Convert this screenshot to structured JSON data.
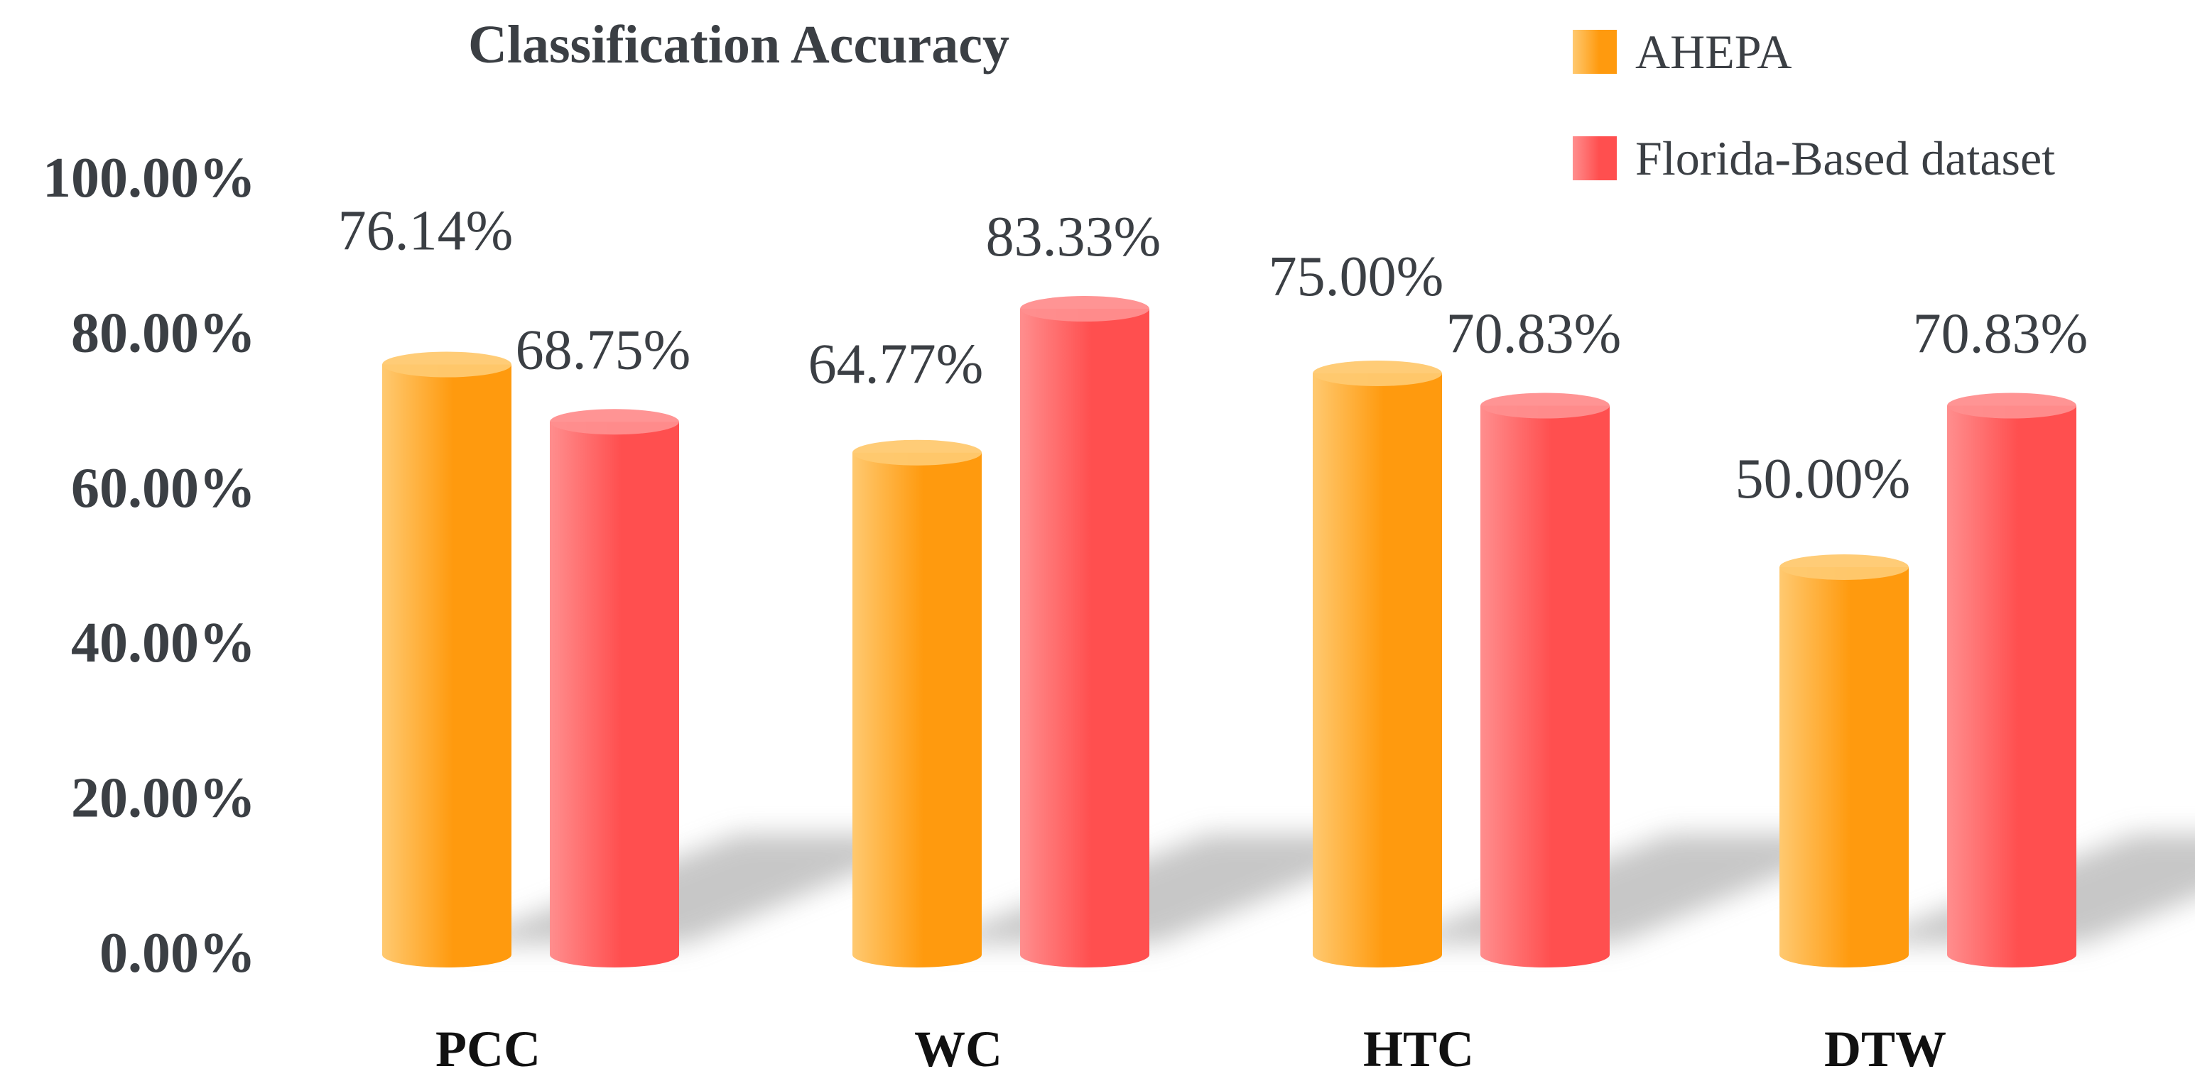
{
  "chart_data": {
    "type": "bar",
    "title": "Classification Accuracy",
    "categories": [
      "PCC",
      "WC",
      "HTC",
      "DTW"
    ],
    "series": [
      {
        "name": "AHEPA",
        "values": [
          76.14,
          64.77,
          75.0,
          50.0
        ],
        "labels": [
          "76.14%",
          "64.77%",
          "75.00%",
          "50.00%"
        ],
        "color": "#FF9A0E",
        "highlight": "#FFC970"
      },
      {
        "name": "Florida-Based dataset",
        "values": [
          68.75,
          83.33,
          70.83,
          70.83
        ],
        "labels": [
          "68.75%",
          "83.33%",
          "70.83%",
          "70.83%"
        ],
        "color": "#FF4F4F",
        "highlight": "#FF8E8E"
      }
    ],
    "yticks": [
      "0.00%",
      "20.00%",
      "40.00%",
      "60.00%",
      "80.00%",
      "100.00%"
    ],
    "ylim": [
      0,
      100
    ],
    "xlabel": "",
    "ylabel": "",
    "grid": false,
    "legend_position": "top-right",
    "style": "3d-cylinder"
  }
}
